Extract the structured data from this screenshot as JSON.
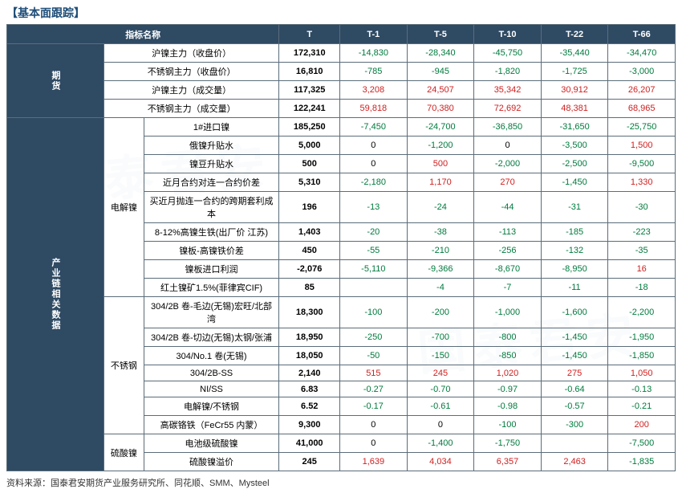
{
  "title": "【基本面跟踪】",
  "source": "资料来源：国泰君安期货产业服务研究所、同花顺、SMM、Mysteel",
  "colors": {
    "header_bg": "#2f4a63",
    "header_fg": "#ffffff",
    "border": "#5b6d7a",
    "neg": "#007a3d",
    "pos": "#d02020",
    "title": "#1f4e79"
  },
  "header": {
    "indicator": "指标名称",
    "cols": [
      "T",
      "T-1",
      "T-5",
      "T-10",
      "T-22",
      "T-66"
    ]
  },
  "groups": [
    {
      "cat": "期货",
      "sub": "",
      "rows": [
        {
          "label": "沪镍主力（收盘价）",
          "t": "172,310",
          "d": [
            "-14,830",
            "-28,340",
            "-45,750",
            "-35,440",
            "-34,470"
          ]
        },
        {
          "label": "不锈钢主力（收盘价）",
          "t": "16,810",
          "d": [
            "-785",
            "-945",
            "-1,820",
            "-1,725",
            "-3,000"
          ]
        },
        {
          "label": "沪镍主力（成交量）",
          "t": "117,325",
          "d": [
            "3,208",
            "24,507",
            "35,342",
            "30,912",
            "26,207"
          ]
        },
        {
          "label": "不锈钢主力（成交量）",
          "t": "122,241",
          "d": [
            "59,818",
            "70,380",
            "72,692",
            "48,381",
            "68,965"
          ]
        }
      ]
    },
    {
      "cat": "产业链相关数据",
      "subs": [
        {
          "name": "电解镍",
          "rows": [
            {
              "label": "1#进口镍",
              "t": "185,250",
              "d": [
                "-7,450",
                "-24,700",
                "-36,850",
                "-31,650",
                "-25,750"
              ]
            },
            {
              "label": "俄镍升贴水",
              "t": "5,000",
              "d": [
                "0",
                "-1,200",
                "0",
                "-3,500",
                "1,500"
              ]
            },
            {
              "label": "镍豆升贴水",
              "t": "500",
              "d": [
                "0",
                "500",
                "-2,000",
                "-2,500",
                "-9,500"
              ]
            },
            {
              "label": "近月合约对连一合约价差",
              "t": "5,310",
              "d": [
                "-2,180",
                "1,170",
                "270",
                "-1,450",
                "1,330"
              ]
            },
            {
              "label": "买近月抛连一合约的跨期套利成本",
              "t": "196",
              "d": [
                "-13",
                "-24",
                "-44",
                "-31",
                "-30"
              ]
            },
            {
              "label": "8-12%高镍生铁(出厂价 江苏)",
              "t": "1,403",
              "d": [
                "-20",
                "-38",
                "-113",
                "-185",
                "-223"
              ]
            },
            {
              "label": "镍板-高镍铁价差",
              "t": "450",
              "d": [
                "-55",
                "-210",
                "-256",
                "-132",
                "-35"
              ]
            },
            {
              "label": "镍板进口利润",
              "t": "-2,076",
              "d": [
                "-5,110",
                "-9,366",
                "-8,670",
                "-8,950",
                "16"
              ]
            },
            {
              "label": "红土镍矿1.5%(菲律宾CIF)",
              "t": "85",
              "d": [
                "",
                "-4",
                "-7",
                "-11",
                "-18"
              ]
            }
          ]
        },
        {
          "name": "不锈钢",
          "rows": [
            {
              "label": "304/2B 卷-毛边(无锡)宏旺/北部湾",
              "t": "18,300",
              "d": [
                "-100",
                "-200",
                "-1,000",
                "-1,600",
                "-2,200"
              ]
            },
            {
              "label": "304/2B 卷-切边(无锡)太钢/张浦",
              "t": "18,950",
              "d": [
                "-250",
                "-700",
                "-800",
                "-1,450",
                "-1,950"
              ]
            },
            {
              "label": "304/No.1 卷(无锡)",
              "t": "18,050",
              "d": [
                "-50",
                "-150",
                "-850",
                "-1,450",
                "-1,850"
              ]
            },
            {
              "label": "304/2B-SS",
              "t": "2,140",
              "d": [
                "515",
                "245",
                "1,020",
                "275",
                "1,050"
              ]
            },
            {
              "label": "NI/SS",
              "t": "6.83",
              "d": [
                "-0.27",
                "-0.70",
                "-0.97",
                "-0.64",
                "-0.13"
              ]
            },
            {
              "label": "电解镍/不锈钢",
              "t": "6.52",
              "d": [
                "-0.17",
                "-0.61",
                "-0.98",
                "-0.57",
                "-0.21"
              ]
            },
            {
              "label": "高碳铬铁（FeCr55 内蒙）",
              "t": "9,300",
              "d": [
                "0",
                "0",
                "-100",
                "-300",
                "200"
              ]
            }
          ]
        },
        {
          "name": "硫酸镍",
          "rows": [
            {
              "label": "电池级硫酸镍",
              "t": "41,000",
              "d": [
                "0",
                "-1,400",
                "-1,750",
                "",
                "-7,500"
              ]
            },
            {
              "label": "硫酸镍溢价",
              "t": "245",
              "d": [
                "1,639",
                "4,034",
                "6,357",
                "2,463",
                "-1,835"
              ]
            }
          ]
        }
      ]
    }
  ]
}
